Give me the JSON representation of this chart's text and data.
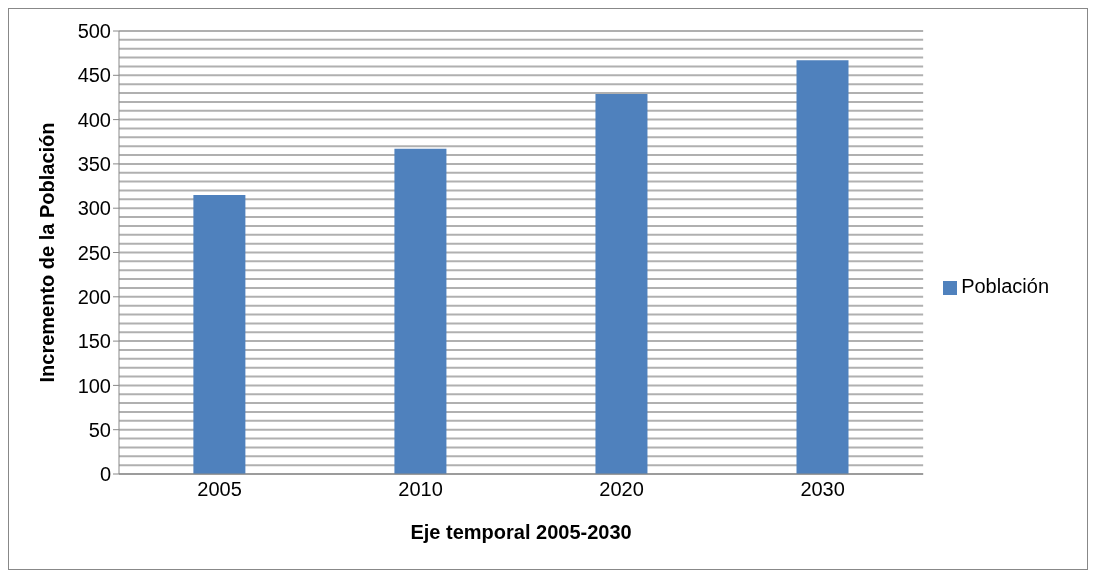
{
  "chart_data": {
    "type": "bar",
    "xlabel": "Eje temporal 2005-2030",
    "ylabel": "Incremento de la Población",
    "categories": [
      "2005",
      "2010",
      "2020",
      "2030"
    ],
    "series": [
      {
        "name": "Población",
        "color": "#4f81bd",
        "values": [
          315,
          367,
          429,
          467
        ]
      }
    ],
    "ylim": [
      0,
      500
    ],
    "yticks": [
      0,
      50,
      100,
      150,
      200,
      250,
      300,
      350,
      400,
      450,
      500
    ],
    "grid": "y",
    "legend": "right"
  }
}
